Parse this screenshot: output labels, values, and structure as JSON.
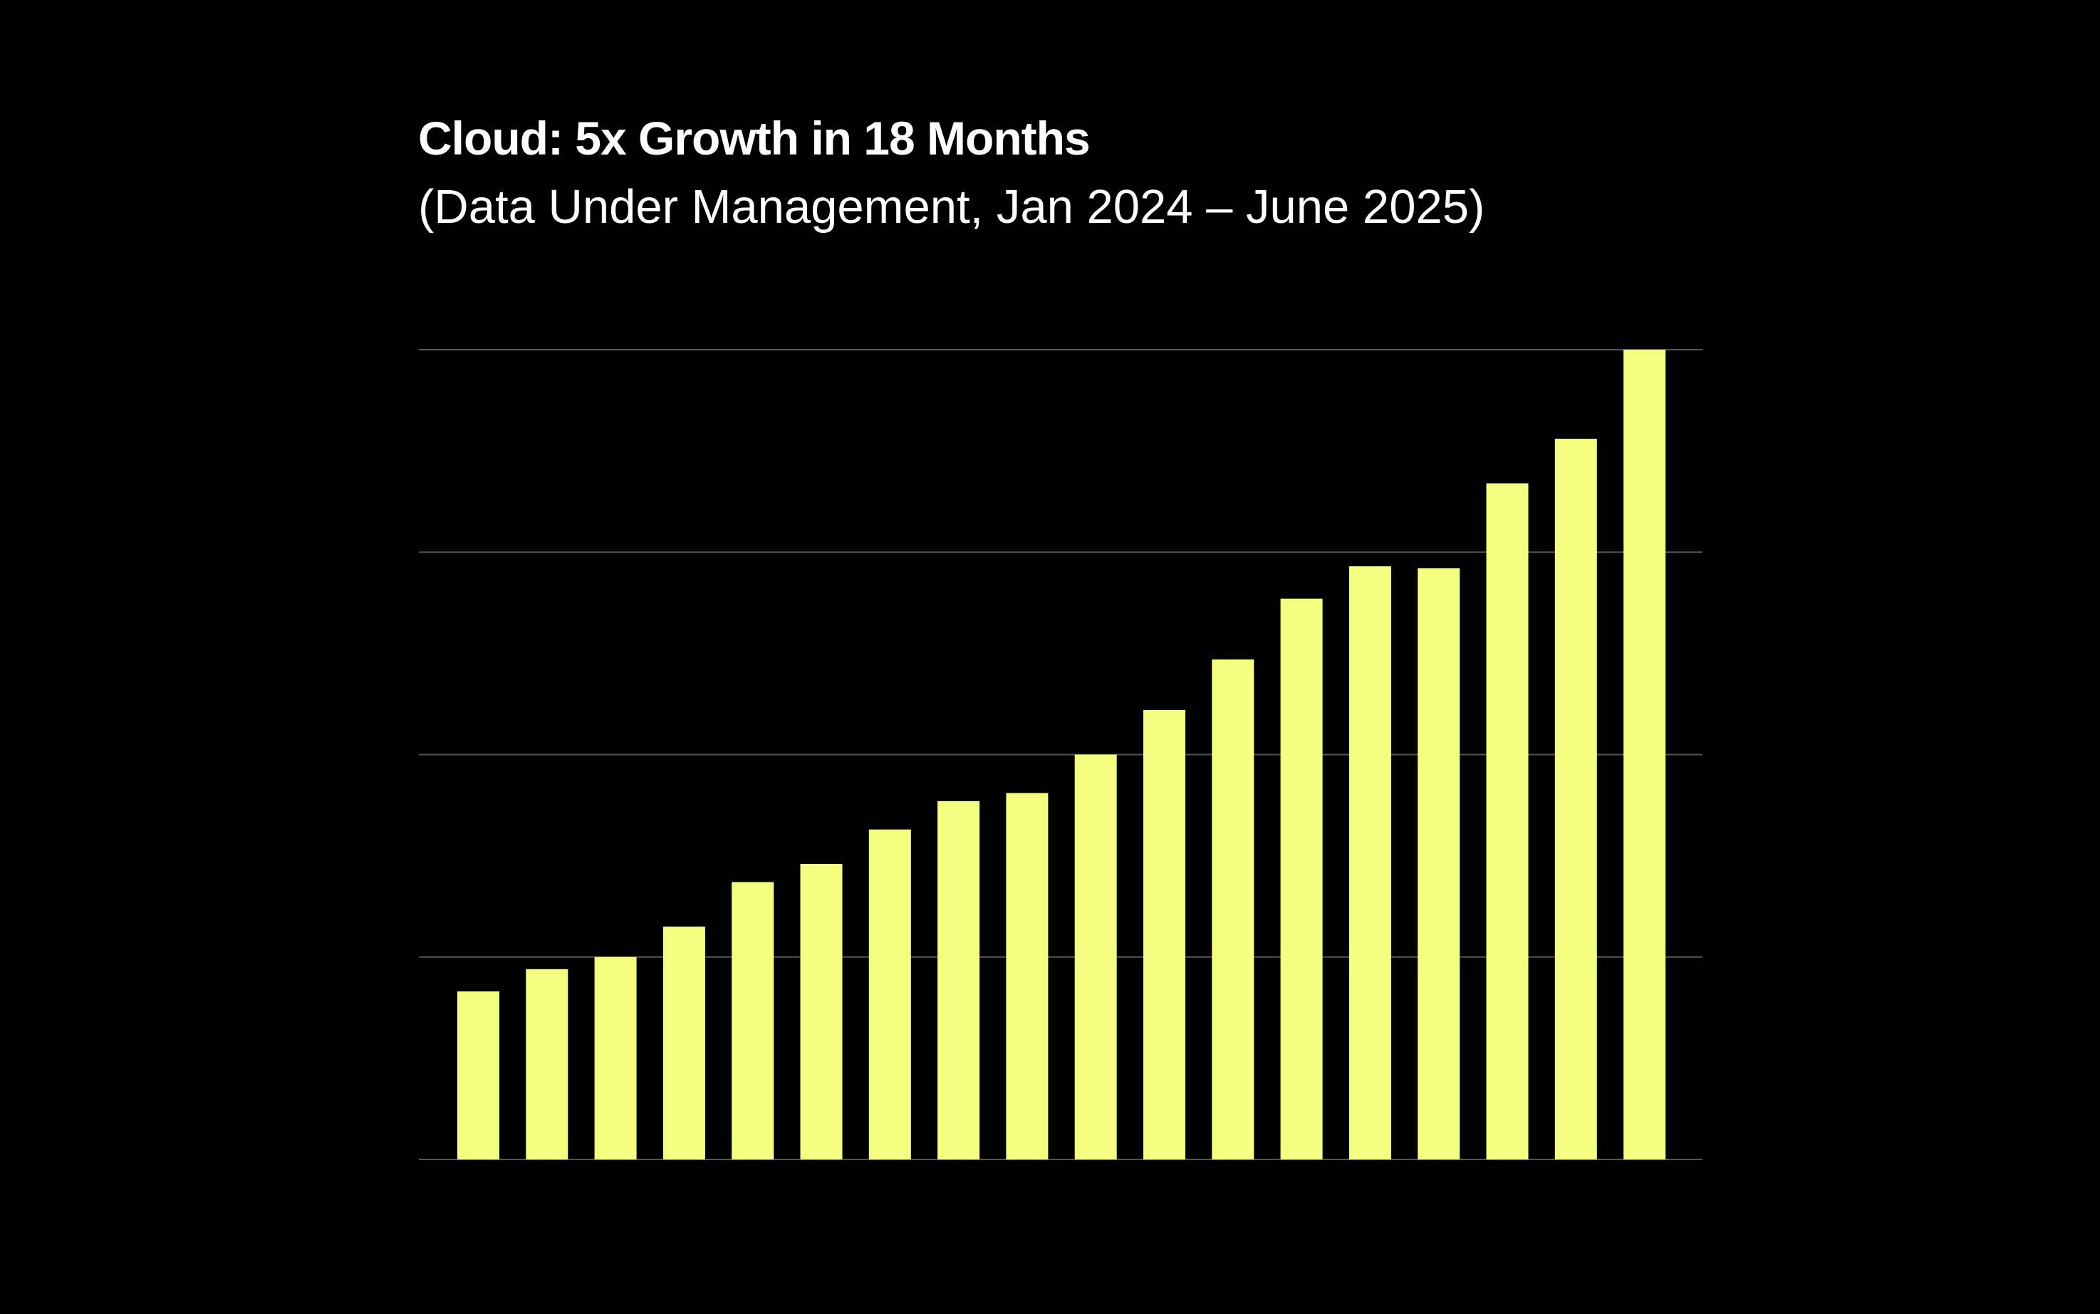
{
  "chart_data": {
    "type": "bar",
    "title": "Cloud: 5x Growth in 18 Months",
    "subtitle": "(Data Under Management, Jan 2024 – June 2025)",
    "xlabel": "",
    "ylabel": "",
    "ylim": [
      0,
      4
    ],
    "gridlines": [
      0,
      1,
      2,
      3,
      4
    ],
    "grid": true,
    "bar_color": "#f4fe7f",
    "grid_color": "#555555",
    "background": "#000000",
    "values": [
      0.83,
      0.94,
      1.0,
      1.15,
      1.37,
      1.46,
      1.63,
      1.77,
      1.81,
      2.0,
      2.22,
      2.47,
      2.77,
      2.93,
      2.92,
      3.34,
      3.56,
      4.0
    ]
  }
}
